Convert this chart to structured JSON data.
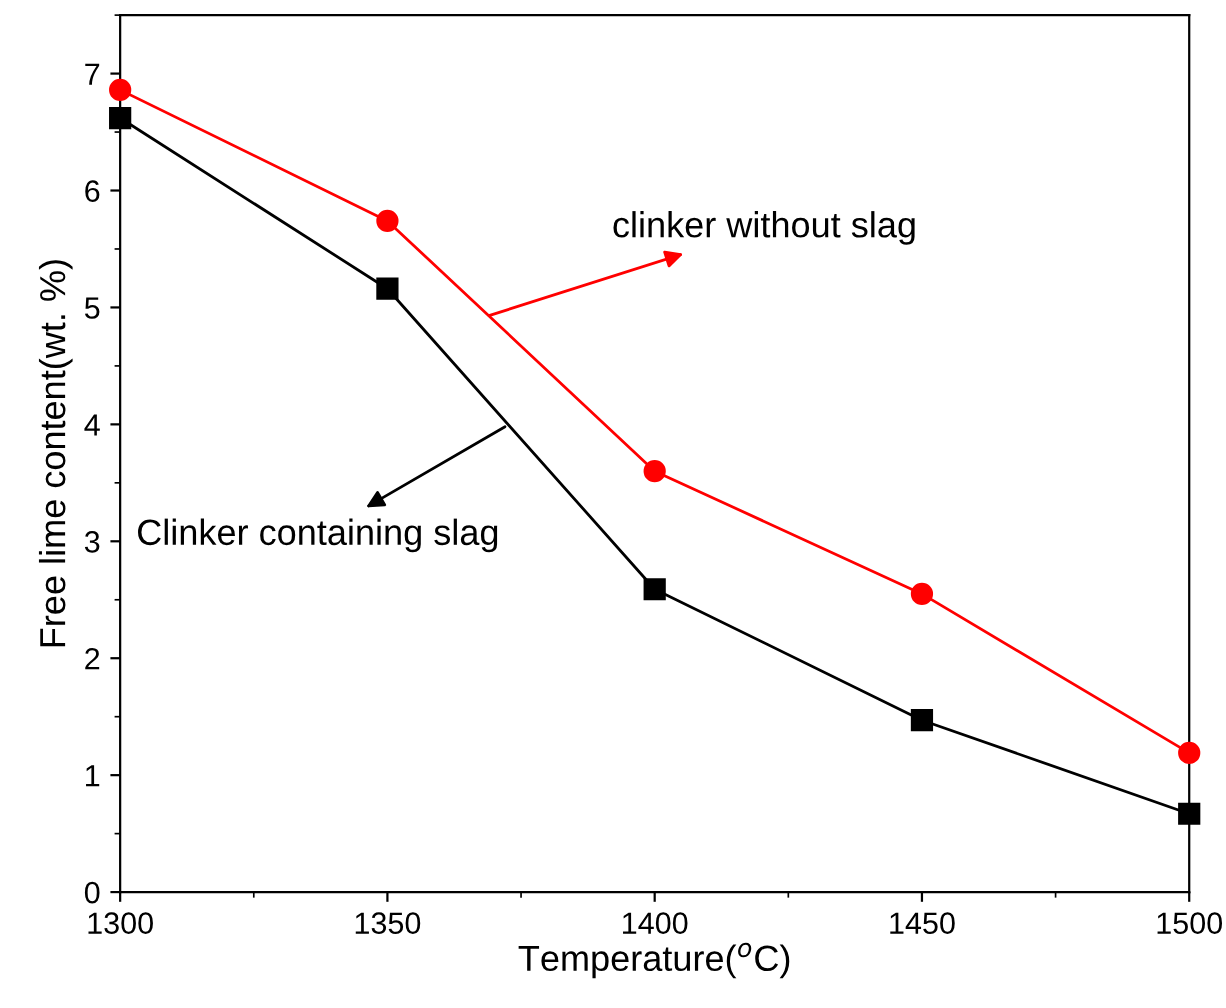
{
  "chart_data": {
    "type": "line",
    "xlabel": "Temperature($^{o}$C)",
    "ylabel": "Free lime content(wt. %)",
    "x": [
      1300,
      1350,
      1400,
      1450,
      1500
    ],
    "series": [
      {
        "color": "#ff0000",
        "marker": "circle",
        "values": [
          6.86,
          5.74,
          3.6,
          2.55,
          1.19
        ]
      },
      {
        "color": "#000000",
        "marker": "square",
        "values": [
          6.62,
          5.16,
          2.59,
          1.47,
          0.67
        ]
      }
    ],
    "annotations": [
      {
        "text": "clinker without slag",
        "x": 1369,
        "y": 4.93
      },
      {
        "text": "Clinker containing slag",
        "x": 1372,
        "y": 3.98
      }
    ],
    "xlim": [
      1300,
      1500
    ],
    "xticks": [
      1300,
      1350,
      1400,
      1450,
      1500
    ],
    "ylim": [
      0,
      7.5
    ],
    "yticks": [
      0,
      1,
      2,
      3,
      4,
      5,
      6,
      7
    ],
    "grid": false,
    "legend": false
  }
}
